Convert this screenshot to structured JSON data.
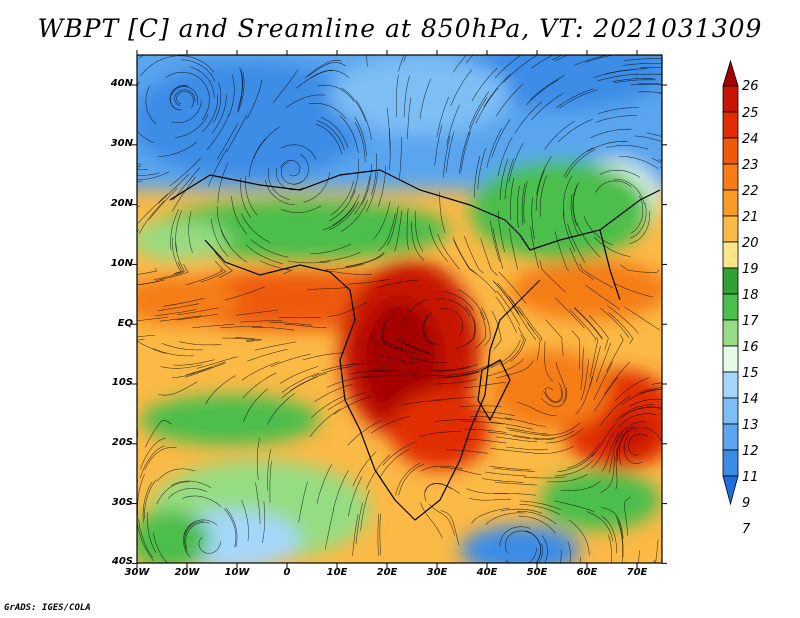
{
  "title": "WBPT [C] and Sreamline at 850hPa, VT: 2021031309",
  "credit": "GrADS: IGES/COLA",
  "map": {
    "lat_labels": [
      "40N",
      "30N",
      "20N",
      "10N",
      "EQ",
      "10S",
      "20S",
      "30S",
      "40S"
    ],
    "lon_labels": [
      "30W",
      "20W",
      "10W",
      "0",
      "10E",
      "20E",
      "30E",
      "40E",
      "50E",
      "60E",
      "70E"
    ],
    "lat_range": [
      -40,
      45
    ],
    "lon_range": [
      -30,
      75
    ]
  },
  "colorbar": {
    "levels": [
      "26",
      "25",
      "24",
      "23",
      "22",
      "21",
      "20",
      "19",
      "18",
      "17",
      "16",
      "15",
      "14",
      "13",
      "12",
      "11",
      "9",
      "7"
    ],
    "colors": [
      "#a50000",
      "#c81400",
      "#e12d00",
      "#ee5a0a",
      "#f57d14",
      "#f99b28",
      "#fbb946",
      "#fde68a",
      "#32a032",
      "#4cbe4c",
      "#96dc82",
      "#e6fae6",
      "#a5d7fa",
      "#7dbef5",
      "#5aa5ee",
      "#3c8ce6",
      "#1e6ee1"
    ]
  }
}
